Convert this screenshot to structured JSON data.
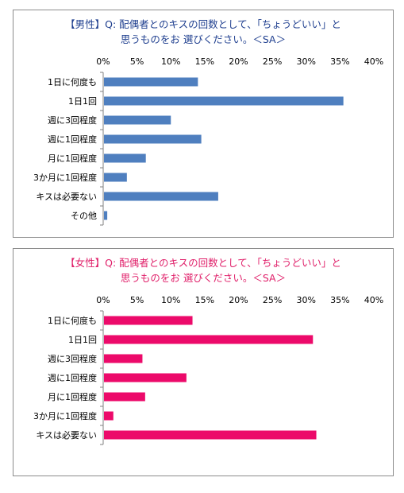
{
  "chart_data": [
    {
      "type": "bar",
      "orientation": "horizontal",
      "title_lines": [
        "【男性】Q: 配偶者とのキスの回数として、「ちょうどいい」と",
        "思うものをお 選びください。＜SA＞"
      ],
      "title_color": "#1f3f8f",
      "bar_color": "#4f7fbf",
      "x_ticks": [
        "0%",
        "5%",
        "10%",
        "15%",
        "20%",
        "25%",
        "30%",
        "35%",
        "40%"
      ],
      "xlim": [
        0,
        40
      ],
      "grid": false,
      "categories": [
        "1日に何度も",
        "1日1回",
        "週に3回程度",
        "週に1回程度",
        "月に1回程度",
        "3か月に1回程度",
        "キスは必要ない",
        "その他"
      ],
      "values": [
        14.0,
        35.5,
        10.0,
        14.5,
        6.3,
        3.5,
        17.0,
        0.6
      ]
    },
    {
      "type": "bar",
      "orientation": "horizontal",
      "title_lines": [
        "【女性】Q: 配偶者とのキスの回数として、「ちょうどいい」と",
        "思うものをお 選びください。＜SA＞"
      ],
      "title_color": "#e0206a",
      "bar_color": "#ec0a6a",
      "x_ticks": [
        "0%",
        "5%",
        "10%",
        "15%",
        "20%",
        "25%",
        "30%",
        "35%",
        "40%"
      ],
      "xlim": [
        0,
        40
      ],
      "grid": false,
      "categories": [
        "1日に何度も",
        "1日1回",
        "週に3回程度",
        "週に1回程度",
        "月に1回程度",
        "3か月に1回程度",
        "キスは必要ない"
      ],
      "values": [
        13.2,
        31.0,
        5.8,
        12.3,
        6.2,
        1.5,
        31.5
      ]
    }
  ]
}
